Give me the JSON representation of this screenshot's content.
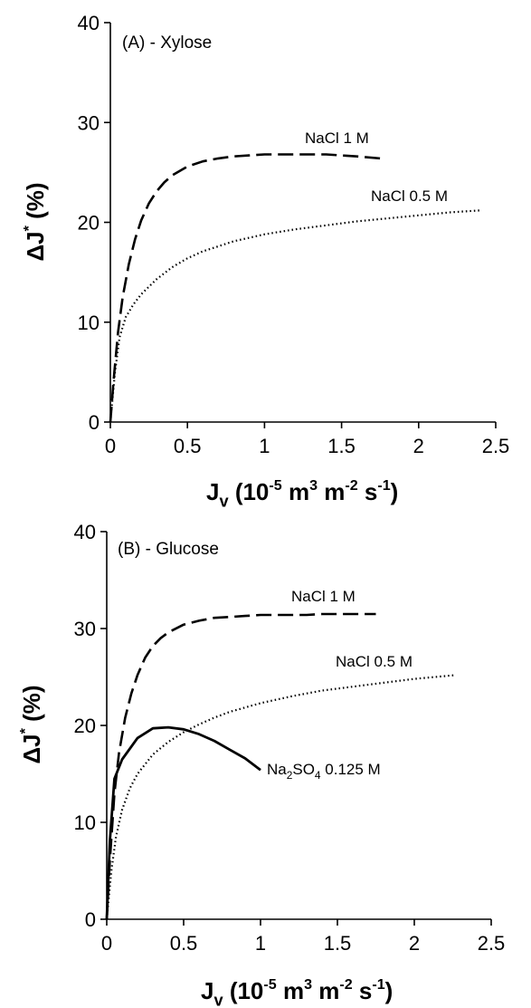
{
  "chart_data": [
    {
      "type": "line",
      "title": "(A) - Xylose",
      "ylabel_main": "ΔJ",
      "ylabel_sup": "*",
      "ylabel_unit": " (%)",
      "xlabel_main": "J",
      "xlabel_sub": "v",
      "xlabel_parts": [
        {
          "t": " (10",
          "style": "normal"
        },
        {
          "t": "-5",
          "style": "sup"
        },
        {
          "t": " m",
          "style": "normal"
        },
        {
          "t": "3",
          "style": "sup"
        },
        {
          "t": " m",
          "style": "normal"
        },
        {
          "t": "-2",
          "style": "sup"
        },
        {
          "t": " s",
          "style": "normal"
        },
        {
          "t": "-1",
          "style": "sup"
        },
        {
          "t": ")",
          "style": "normal"
        }
      ],
      "xlim": [
        0,
        2.5
      ],
      "ylim": [
        0,
        40
      ],
      "xticks": [
        "0",
        "0.5",
        "1",
        "1.5",
        "2",
        "2.5"
      ],
      "yticks": [
        "0",
        "10",
        "20",
        "30",
        "40"
      ],
      "series": [
        {
          "name": "NaCl 1 M",
          "label_parts": [
            {
              "t": "NaCl 1 M",
              "style": "normal"
            }
          ],
          "style": "dashed",
          "x": [
            0,
            0.02,
            0.05,
            0.08,
            0.12,
            0.16,
            0.2,
            0.25,
            0.3,
            0.35,
            0.4,
            0.5,
            0.6,
            0.7,
            0.8,
            0.9,
            1.0,
            1.1,
            1.2,
            1.3,
            1.4,
            1.5,
            1.6,
            1.75
          ],
          "y": [
            0,
            4,
            9,
            12.5,
            15.8,
            18.3,
            20.2,
            21.9,
            23.1,
            24.0,
            24.7,
            25.6,
            26.1,
            26.4,
            26.6,
            26.7,
            26.8,
            26.8,
            26.8,
            26.8,
            26.8,
            26.7,
            26.6,
            26.4
          ]
        },
        {
          "name": "NaCl 0.5 M",
          "label_parts": [
            {
              "t": "NaCl 0.5 M",
              "style": "normal"
            }
          ],
          "style": "dotted",
          "x": [
            0,
            0.03,
            0.06,
            0.1,
            0.15,
            0.2,
            0.3,
            0.4,
            0.5,
            0.6,
            0.7,
            0.8,
            1.0,
            1.2,
            1.4,
            1.6,
            1.8,
            2.0,
            2.2,
            2.4
          ],
          "y": [
            0,
            5,
            8.5,
            10.5,
            11.8,
            12.8,
            14.3,
            15.5,
            16.4,
            17.1,
            17.6,
            18.1,
            18.8,
            19.3,
            19.7,
            20.1,
            20.4,
            20.7,
            21.0,
            21.2
          ]
        }
      ]
    },
    {
      "type": "line",
      "title": "(B) - Glucose",
      "ylabel_main": "ΔJ",
      "ylabel_sup": "*",
      "ylabel_unit": " (%)",
      "xlabel_main": "J",
      "xlabel_sub": "v",
      "xlabel_parts": [
        {
          "t": " (10",
          "style": "normal"
        },
        {
          "t": "-5",
          "style": "sup"
        },
        {
          "t": " m",
          "style": "normal"
        },
        {
          "t": "3",
          "style": "sup"
        },
        {
          "t": " m",
          "style": "normal"
        },
        {
          "t": "-2",
          "style": "sup"
        },
        {
          "t": " s",
          "style": "normal"
        },
        {
          "t": "-1",
          "style": "sup"
        },
        {
          "t": ")",
          "style": "normal"
        }
      ],
      "xlim": [
        0,
        2.5
      ],
      "ylim": [
        0,
        40
      ],
      "xticks": [
        "0",
        "0.5",
        "1",
        "1.5",
        "2",
        "2.5"
      ],
      "yticks": [
        "0",
        "10",
        "20",
        "30",
        "40"
      ],
      "series": [
        {
          "name": "NaCl 1 M",
          "label_parts": [
            {
              "t": "NaCl 1 M",
              "style": "normal"
            }
          ],
          "style": "dashed",
          "x": [
            0,
            0.02,
            0.05,
            0.08,
            0.12,
            0.16,
            0.2,
            0.25,
            0.3,
            0.35,
            0.4,
            0.5,
            0.6,
            0.7,
            0.8,
            0.9,
            1.0,
            1.1,
            1.2,
            1.3,
            1.4,
            1.5,
            1.6,
            1.75
          ],
          "y": [
            0,
            6,
            13,
            17.2,
            20.8,
            23.3,
            25.2,
            27.0,
            28.2,
            29.0,
            29.6,
            30.4,
            30.8,
            31.1,
            31.2,
            31.3,
            31.4,
            31.4,
            31.4,
            31.4,
            31.5,
            31.5,
            31.5,
            31.5
          ]
        },
        {
          "name": "NaCl 0.5 M",
          "label_parts": [
            {
              "t": "NaCl 0.5 M",
              "style": "normal"
            }
          ],
          "style": "dotted",
          "x": [
            0,
            0.03,
            0.06,
            0.1,
            0.15,
            0.2,
            0.3,
            0.4,
            0.5,
            0.6,
            0.7,
            0.8,
            1.0,
            1.2,
            1.4,
            1.6,
            1.8,
            2.0,
            2.27
          ],
          "y": [
            0,
            5,
            8.5,
            11.3,
            13.5,
            15.0,
            17.0,
            18.3,
            19.3,
            20.1,
            20.8,
            21.4,
            22.3,
            23.0,
            23.6,
            24.0,
            24.4,
            24.8,
            25.2
          ]
        },
        {
          "name": "Na2SO4 0.125 M",
          "label_parts": [
            {
              "t": "Na",
              "style": "normal"
            },
            {
              "t": "2",
              "style": "sub"
            },
            {
              "t": "SO",
              "style": "normal"
            },
            {
              "t": "4",
              "style": "sub"
            },
            {
              "t": " 0.125 M",
              "style": "normal"
            }
          ],
          "style": "solid",
          "x": [
            0,
            0.02,
            0.05,
            0.1,
            0.2,
            0.3,
            0.4,
            0.5,
            0.6,
            0.7,
            0.8,
            0.9,
            1.0
          ],
          "y": [
            0,
            8,
            14.5,
            16.5,
            18.7,
            19.7,
            19.8,
            19.6,
            19.1,
            18.4,
            17.5,
            16.6,
            15.4
          ]
        }
      ]
    }
  ]
}
